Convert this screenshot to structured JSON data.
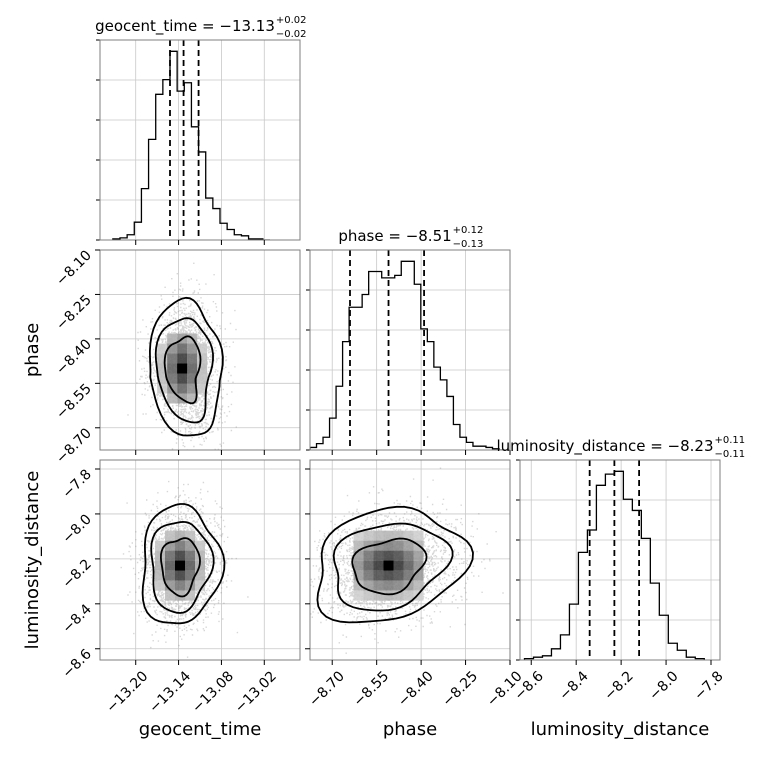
{
  "chart_data": {
    "type": "corner",
    "parameters": [
      "geocent_time",
      "phase",
      "luminosity_distance"
    ],
    "titles": [
      {
        "param": "geocent_time",
        "text": "geocent_time = −13.13",
        "sup": "+0.02",
        "sub": "−0.02"
      },
      {
        "param": "phase",
        "text": "phase = −8.51",
        "sup": "+0.12",
        "sub": "−0.13"
      },
      {
        "param": "luminosity_distance",
        "text": "luminosity_distance = −8.23",
        "sup": "+0.11",
        "sub": "−0.11"
      }
    ],
    "axes": {
      "geocent_time": {
        "range": [
          -13.25,
          -12.97
        ],
        "ticks": [
          -13.2,
          -13.14,
          -13.08,
          -13.02
        ],
        "tick_labels": [
          "−13.20",
          "−13.14",
          "−13.08",
          "−13.02"
        ]
      },
      "phase": {
        "range": [
          -8.775,
          -8.1
        ],
        "ticks": [
          -8.7,
          -8.55,
          -8.4,
          -8.25,
          -8.1
        ],
        "tick_labels": [
          "−8.70",
          "−8.55",
          "−8.40",
          "−8.25",
          "−8.10"
        ]
      },
      "luminosity_distance": {
        "range": [
          -8.65,
          -7.76
        ],
        "ticks": [
          -8.6,
          -8.4,
          -8.2,
          -8.0,
          -7.8
        ],
        "tick_labels": [
          "−8.6",
          "−8.4",
          "−8.2",
          "−8.0",
          "−7.8"
        ]
      }
    },
    "histograms": {
      "geocent_time": {
        "edges": [
          -13.232,
          -13.222,
          -13.212,
          -13.202,
          -13.192,
          -13.182,
          -13.172,
          -13.162,
          -13.152,
          -13.142,
          -13.132,
          -13.122,
          -13.112,
          -13.102,
          -13.092,
          -13.082,
          -13.072,
          -13.062,
          -13.052,
          -13.042,
          -13.032,
          -13.022,
          -13.012
        ],
        "counts": [
          1,
          2,
          5,
          17,
          49,
          96,
          139,
          153,
          180,
          142,
          150,
          108,
          84,
          40,
          30,
          16,
          10,
          5,
          4,
          1,
          1,
          0
        ],
        "quantiles": [
          -13.152,
          -13.133,
          -13.112
        ]
      },
      "phase": {
        "edges": [
          -8.775,
          -8.753,
          -8.731,
          -8.709,
          -8.687,
          -8.665,
          -8.643,
          -8.621,
          -8.599,
          -8.577,
          -8.555,
          -8.533,
          -8.511,
          -8.489,
          -8.467,
          -8.445,
          -8.423,
          -8.401,
          -8.379,
          -8.357,
          -8.335,
          -8.313,
          -8.291,
          -8.269,
          -8.247,
          -8.225,
          -8.203,
          -8.181,
          -8.159,
          -8.137,
          -8.115
        ],
        "counts": [
          2,
          5,
          10,
          25,
          50,
          85,
          112,
          112,
          122,
          140,
          140,
          135,
          135,
          137,
          148,
          148,
          130,
          95,
          85,
          65,
          55,
          42,
          20,
          10,
          6,
          3,
          3,
          2,
          1,
          0
        ],
        "quantiles": [
          -8.64,
          -8.51,
          -8.39
        ]
      },
      "luminosity_distance": {
        "edges": [
          -8.63,
          -8.59,
          -8.55,
          -8.51,
          -8.47,
          -8.43,
          -8.39,
          -8.35,
          -8.31,
          -8.27,
          -8.23,
          -8.19,
          -8.15,
          -8.11,
          -8.07,
          -8.03,
          -7.99,
          -7.95,
          -7.91,
          -7.87,
          -7.83
        ],
        "counts": [
          1,
          2,
          3,
          8,
          18,
          40,
          77,
          93,
          125,
          133,
          135,
          115,
          107,
          87,
          55,
          32,
          12,
          7,
          2,
          1
        ],
        "quantiles": [
          -8.34,
          -8.23,
          -8.12
        ]
      }
    },
    "joint": {
      "phase_vs_geocent_time": {
        "x": "geocent_time",
        "y": "phase",
        "mean": [
          -13.135,
          -8.5
        ],
        "sd": [
          0.022,
          0.1
        ],
        "rho": 0.15,
        "bend": 1.2,
        "bend_frac": 0.75,
        "samples": 2500,
        "levels": [
          1.0,
          1.6,
          2.1
        ]
      },
      "luminosity_distance_vs_geocent_time": {
        "x": "geocent_time",
        "y": "luminosity_distance",
        "mean": [
          -13.138,
          -8.23
        ],
        "sd": [
          0.024,
          0.115
        ],
        "rho": 0.05,
        "bend": 0,
        "bend_frac": 1,
        "samples": 2500,
        "levels": [
          1.0,
          1.6,
          2.1
        ]
      },
      "luminosity_distance_vs_phase": {
        "x": "phase",
        "y": "luminosity_distance",
        "mean": [
          -8.51,
          -8.23
        ],
        "sd": [
          0.11,
          0.11
        ],
        "rho": 0.2,
        "bend": 0,
        "bend_frac": 1,
        "samples": 2500,
        "levels": [
          1.0,
          1.6,
          2.1
        ]
      }
    },
    "grid": true,
    "colors": {
      "line": "#000000",
      "scatter": "#8c8c8c",
      "grid": "#c8c8c8",
      "axes": "#7f7f7f"
    }
  }
}
